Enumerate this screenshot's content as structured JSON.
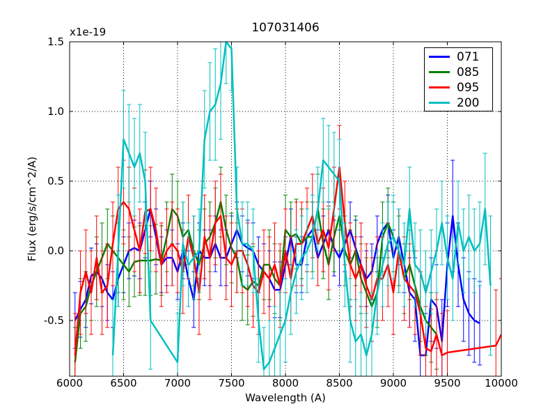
{
  "chart_data": {
    "type": "line",
    "title": "107031406",
    "xlabel": "Wavelength (A)",
    "ylabel": "Flux (erg/s/cm^2/A)",
    "y_offset_label": "x1e-19",
    "xlim": [
      6000,
      10000
    ],
    "ylim": [
      -0.9,
      1.5
    ],
    "xticks": [
      6000,
      6500,
      7000,
      7500,
      8000,
      8500,
      9000,
      9500,
      10000
    ],
    "yticks": [
      -0.5,
      0.0,
      0.5,
      1.0,
      1.5
    ],
    "ytick_labels": [
      "-0.5",
      "0.0",
      "0.5",
      "1.0",
      "1.5"
    ],
    "grid": true,
    "legend_position": "top-right",
    "series": [
      {
        "name": "071",
        "color": "#0000ff",
        "x": [
          6050,
          6100,
          6150,
          6200,
          6250,
          6300,
          6350,
          6400,
          6450,
          6500,
          6550,
          6600,
          6650,
          6700,
          6750,
          6800,
          6850,
          6900,
          6950,
          7000,
          7050,
          7100,
          7150,
          7200,
          7250,
          7300,
          7350,
          7400,
          7450,
          7500,
          7550,
          7600,
          7650,
          7700,
          7750,
          7800,
          7850,
          7900,
          7950,
          8000,
          8050,
          8100,
          8150,
          8200,
          8250,
          8300,
          8350,
          8400,
          8450,
          8500,
          8550,
          8600,
          8650,
          8700,
          8750,
          8800,
          8850,
          8900,
          8950,
          9000,
          9050,
          9100,
          9150,
          9200,
          9250,
          9300,
          9350,
          9400,
          9450,
          9500,
          9550,
          9600,
          9650,
          9700,
          9750,
          9800
        ],
        "y": [
          -0.5,
          -0.42,
          -0.35,
          -0.18,
          -0.15,
          -0.2,
          -0.3,
          -0.35,
          -0.2,
          -0.1,
          0.0,
          0.02,
          0.0,
          0.15,
          0.3,
          0.1,
          -0.1,
          -0.05,
          -0.05,
          -0.15,
          0.0,
          -0.2,
          -0.35,
          0.0,
          -0.05,
          -0.05,
          0.05,
          -0.05,
          -0.05,
          0.05,
          0.15,
          0.05,
          0.02,
          0.0,
          -0.1,
          -0.15,
          -0.2,
          -0.28,
          -0.28,
          -0.1,
          0.1,
          -0.1,
          -0.1,
          0.1,
          0.15,
          -0.05,
          0.05,
          0.15,
          0.02,
          -0.05,
          0.05,
          0.15,
          0.02,
          -0.1,
          -0.2,
          -0.15,
          0.05,
          0.15,
          0.2,
          -0.05,
          0.1,
          -0.1,
          -0.3,
          -0.35,
          -0.75,
          -0.75,
          -0.35,
          -0.4,
          -0.65,
          -0.1,
          0.25,
          -0.1,
          -0.35,
          -0.45,
          -0.5,
          -0.52
        ],
        "error": [
          0.2,
          0.2,
          0.2,
          0.2,
          0.2,
          0.2,
          0.2,
          0.2,
          0.2,
          0.2,
          0.2,
          0.2,
          0.2,
          0.2,
          0.2,
          0.2,
          0.2,
          0.2,
          0.2,
          0.2,
          0.2,
          0.2,
          0.2,
          0.2,
          0.2,
          0.2,
          0.2,
          0.2,
          0.2,
          0.2,
          0.2,
          0.2,
          0.2,
          0.2,
          0.2,
          0.2,
          0.2,
          0.2,
          0.2,
          0.2,
          0.2,
          0.2,
          0.2,
          0.2,
          0.2,
          0.2,
          0.2,
          0.2,
          0.2,
          0.2,
          0.2,
          0.2,
          0.2,
          0.2,
          0.2,
          0.2,
          0.2,
          0.2,
          0.2,
          0.2,
          0.2,
          0.2,
          0.25,
          0.3,
          0.3,
          0.3,
          0.3,
          0.3,
          0.3,
          0.3,
          0.4,
          0.3,
          0.3,
          0.3,
          0.3,
          0.3
        ]
      },
      {
        "name": "085",
        "color": "#008000",
        "x": [
          6050,
          6100,
          6150,
          6200,
          6250,
          6300,
          6350,
          6400,
          6450,
          6500,
          6550,
          6600,
          6650,
          6700,
          6750,
          6800,
          6850,
          6900,
          6950,
          7000,
          7050,
          7100,
          7150,
          7200,
          7250,
          7300,
          7350,
          7400,
          7450,
          7500,
          7550,
          7600,
          7650,
          7700,
          7750,
          7800,
          7850,
          7900,
          7950,
          8000,
          8050,
          8100,
          8150,
          8200,
          8250,
          8300,
          8350,
          8400,
          8450,
          8500,
          8550,
          8600,
          8650,
          8700,
          8750,
          8800,
          8850,
          8900,
          8950,
          9000,
          9050,
          9100,
          9150,
          9200,
          9250,
          9300,
          9350,
          9400
        ],
        "y": [
          -0.8,
          -0.45,
          -0.4,
          -0.25,
          -0.15,
          -0.05,
          0.05,
          0.0,
          -0.05,
          -0.1,
          -0.15,
          -0.08,
          -0.07,
          -0.07,
          -0.07,
          -0.06,
          -0.07,
          0.1,
          0.3,
          0.25,
          0.1,
          0.15,
          0.0,
          -0.1,
          0.05,
          0.1,
          0.2,
          0.35,
          0.15,
          0.02,
          -0.05,
          -0.25,
          -0.28,
          -0.22,
          -0.25,
          -0.1,
          -0.1,
          -0.2,
          -0.25,
          0.15,
          0.1,
          0.12,
          0.05,
          0.1,
          0.1,
          0.3,
          0.05,
          -0.1,
          0.1,
          0.25,
          0.0,
          -0.1,
          0.0,
          -0.2,
          -0.3,
          -0.4,
          -0.3,
          0.1,
          0.2,
          0.1,
          0.0,
          -0.2,
          -0.1,
          -0.25,
          -0.4,
          -0.5,
          -0.55,
          -0.6
        ],
        "error": [
          0.25,
          0.25,
          0.25,
          0.25,
          0.25,
          0.25,
          0.25,
          0.25,
          0.25,
          0.25,
          0.25,
          0.25,
          0.25,
          0.25,
          0.25,
          0.25,
          0.25,
          0.25,
          0.25,
          0.25,
          0.25,
          0.25,
          0.25,
          0.25,
          0.25,
          0.25,
          0.25,
          0.25,
          0.25,
          0.25,
          0.25,
          0.25,
          0.25,
          0.25,
          0.25,
          0.25,
          0.25,
          0.25,
          0.25,
          0.25,
          0.25,
          0.25,
          0.25,
          0.25,
          0.25,
          0.25,
          0.25,
          0.25,
          0.25,
          0.25,
          0.25,
          0.25,
          0.25,
          0.25,
          0.25,
          0.25,
          0.25,
          0.25,
          0.25,
          0.25,
          0.25,
          0.25,
          0.25,
          0.25,
          0.25,
          0.25,
          0.25,
          0.25
        ]
      },
      {
        "name": "095",
        "color": "#ff0000",
        "x": [
          6050,
          6100,
          6150,
          6200,
          6250,
          6300,
          6350,
          6400,
          6450,
          6500,
          6550,
          6600,
          6650,
          6700,
          6750,
          6800,
          6850,
          6900,
          6950,
          7000,
          7050,
          7100,
          7150,
          7200,
          7250,
          7300,
          7350,
          7400,
          7450,
          7500,
          7550,
          7600,
          7650,
          7700,
          7750,
          7800,
          7850,
          7900,
          7950,
          8000,
          8050,
          8100,
          8150,
          8200,
          8250,
          8300,
          8350,
          8400,
          8450,
          8500,
          8550,
          8600,
          8650,
          8700,
          8750,
          8800,
          8850,
          8900,
          8950,
          9000,
          9050,
          9100,
          9150,
          9200,
          9250,
          9300,
          9350,
          9400,
          9450,
          9500,
          9950,
          10000
        ],
        "y": [
          -0.75,
          -0.3,
          -0.15,
          -0.3,
          -0.05,
          -0.3,
          -0.25,
          0.05,
          0.3,
          0.35,
          0.3,
          0.15,
          0.0,
          0.28,
          0.3,
          0.15,
          -0.1,
          0.0,
          0.05,
          0.0,
          -0.15,
          0.1,
          -0.05,
          -0.3,
          0.1,
          -0.05,
          0.2,
          0.25,
          -0.05,
          -0.1,
          0.0,
          0.0,
          -0.1,
          -0.25,
          -0.3,
          -0.15,
          -0.2,
          -0.1,
          -0.25,
          0.0,
          -0.2,
          0.05,
          0.05,
          0.15,
          0.25,
          0.05,
          0.15,
          0.02,
          0.3,
          0.6,
          0.2,
          -0.1,
          -0.2,
          -0.1,
          -0.25,
          -0.35,
          -0.2,
          -0.2,
          -0.1,
          -0.3,
          0.0,
          -0.2,
          -0.25,
          -0.3,
          -0.45,
          -0.7,
          -0.72,
          -0.6,
          -0.75,
          -0.73,
          -0.68,
          -0.6
        ],
        "error": [
          0.3,
          0.3,
          0.3,
          0.3,
          0.3,
          0.3,
          0.3,
          0.3,
          0.3,
          0.3,
          0.3,
          0.3,
          0.3,
          0.3,
          0.3,
          0.3,
          0.3,
          0.3,
          0.3,
          0.3,
          0.3,
          0.3,
          0.3,
          0.3,
          0.3,
          0.3,
          0.3,
          0.3,
          0.3,
          0.3,
          0.3,
          0.3,
          0.3,
          0.3,
          0.3,
          0.3,
          0.3,
          0.3,
          0.3,
          0.3,
          0.3,
          0.3,
          0.3,
          0.3,
          0.3,
          0.3,
          0.3,
          0.3,
          0.3,
          0.3,
          0.3,
          0.3,
          0.3,
          0.3,
          0.3,
          0.3,
          0.3,
          0.3,
          0.3,
          0.3,
          0.3,
          0.3,
          0.3,
          0.3,
          0.3,
          0.3,
          0.3,
          0.3,
          0.3,
          0.3,
          0.4,
          0.4
        ]
      },
      {
        "name": "200",
        "color": "#00bfbf",
        "x": [
          6400,
          6450,
          6500,
          6550,
          6600,
          6650,
          6700,
          6750,
          7000,
          7050,
          7100,
          7150,
          7200,
          7250,
          7300,
          7350,
          7400,
          7450,
          7500,
          7550,
          7600,
          7650,
          7700,
          7750,
          7800,
          7850,
          7900,
          7950,
          8000,
          8050,
          8100,
          8150,
          8200,
          8250,
          8300,
          8350,
          8400,
          8450,
          8500,
          8550,
          8600,
          8650,
          8700,
          8750,
          8800,
          8850,
          8900,
          8950,
          9000,
          9050,
          9100,
          9150,
          9200,
          9250,
          9300,
          9350,
          9400,
          9450,
          9500,
          9550,
          9600,
          9650,
          9700,
          9750,
          9800,
          9850,
          9900
        ],
        "y": [
          -0.75,
          0.0,
          0.8,
          0.7,
          0.6,
          0.7,
          0.5,
          -0.5,
          -0.8,
          0.05,
          -0.1,
          -0.05,
          0.0,
          0.8,
          1.0,
          1.05,
          1.2,
          1.5,
          1.45,
          0.3,
          0.05,
          0.05,
          0.0,
          -0.5,
          -0.85,
          -0.8,
          -0.7,
          -0.6,
          -0.5,
          -0.3,
          -0.15,
          -0.05,
          0.0,
          0.1,
          0.3,
          0.65,
          0.6,
          0.55,
          0.5,
          -0.1,
          -0.5,
          -0.65,
          -0.6,
          -0.75,
          -0.6,
          -0.3,
          -0.1,
          0.05,
          0.1,
          0.0,
          -0.1,
          0.3,
          -0.1,
          -0.15,
          -0.3,
          -0.15,
          0.0,
          0.2,
          -0.05,
          -0.2,
          0.2,
          0.0,
          0.1,
          0.0,
          0.05,
          0.3,
          -0.25
        ],
        "error": [
          0.4,
          0.4,
          0.35,
          0.35,
          0.35,
          0.35,
          0.35,
          0.35,
          0.35,
          0.3,
          0.3,
          0.3,
          0.3,
          0.35,
          0.35,
          0.4,
          0.4,
          0.3,
          0.3,
          0.3,
          0.3,
          0.3,
          0.3,
          0.3,
          0.3,
          0.3,
          0.3,
          0.3,
          0.3,
          0.3,
          0.3,
          0.3,
          0.3,
          0.3,
          0.3,
          0.3,
          0.3,
          0.3,
          0.3,
          0.3,
          0.3,
          0.3,
          0.3,
          0.3,
          0.3,
          0.3,
          0.3,
          0.3,
          0.3,
          0.3,
          0.3,
          0.3,
          0.3,
          0.3,
          0.3,
          0.3,
          0.3,
          0.3,
          0.3,
          0.3,
          0.3,
          0.3,
          0.3,
          0.3,
          0.3,
          0.4,
          0.5
        ]
      }
    ]
  }
}
